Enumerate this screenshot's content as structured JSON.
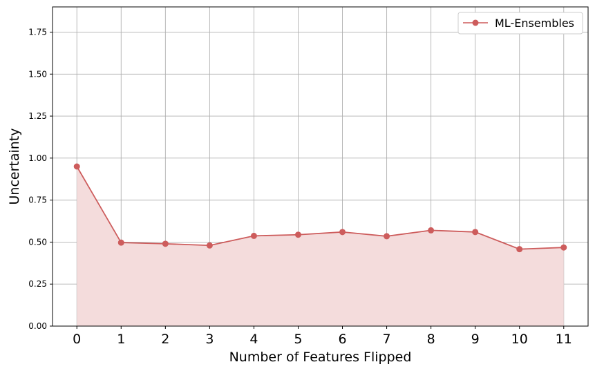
{
  "chart_data": {
    "type": "area",
    "title": "",
    "xlabel": "Number of Features Flipped",
    "ylabel": "Uncertainty",
    "x": [
      0,
      1,
      2,
      3,
      4,
      5,
      6,
      7,
      8,
      9,
      10,
      11
    ],
    "x_tick_labels": [
      "0",
      "1",
      "2",
      "3",
      "4",
      "5",
      "6",
      "7",
      "8",
      "9",
      "10",
      "11"
    ],
    "y_tick_labels": [
      "0.00",
      "0.25",
      "0.50",
      "0.75",
      "1.00",
      "1.25",
      "1.50",
      "1.75"
    ],
    "y_ticks": [
      0.0,
      0.25,
      0.5,
      0.75,
      1.0,
      1.25,
      1.5,
      1.75
    ],
    "xlim": [
      -0.55,
      11.55
    ],
    "ylim": [
      0,
      1.9
    ],
    "grid": true,
    "legend_position": "top-right",
    "series": [
      {
        "name": "ML-Ensembles",
        "color": "#cd5c5c",
        "fill_color": "#f4dcdc",
        "marker": "circle",
        "values": [
          0.95,
          0.497,
          0.49,
          0.48,
          0.537,
          0.544,
          0.56,
          0.535,
          0.57,
          0.56,
          0.458,
          0.468
        ]
      }
    ]
  }
}
